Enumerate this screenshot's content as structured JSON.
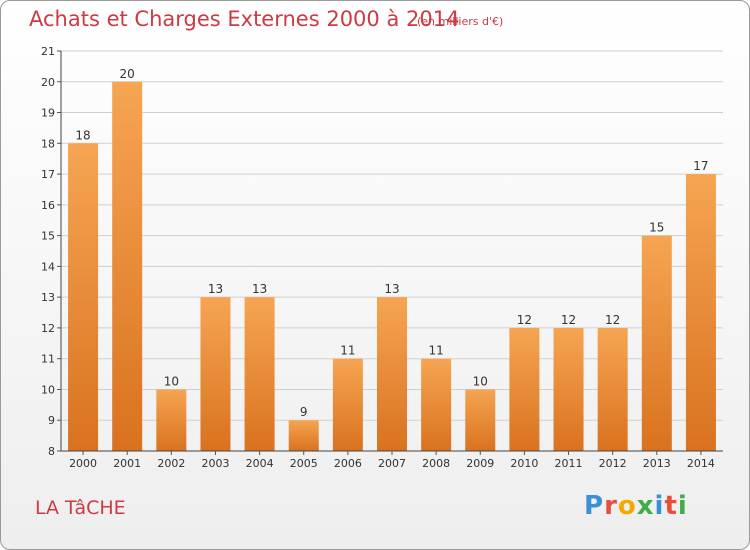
{
  "header": {
    "title": "Achats et Charges Externes 2000 à 2014",
    "subtitle": "(en milliers d'€)"
  },
  "footer": {
    "town": "LA TâCHE",
    "brand": "Proxiti",
    "brand_letters": [
      "P",
      "r",
      "o",
      "x",
      "i",
      "t",
      "i"
    ],
    "brand_colors": [
      "#3b8fd6",
      "#e94e3c",
      "#f2a900",
      "#3fae49",
      "#3b8fd6",
      "#e94e3c",
      "#3fae49"
    ]
  },
  "colors": {
    "bar_top": "#f6a552",
    "bar_bottom": "#d9721f",
    "title": "#cc3b45",
    "grid": "#cfcfcf"
  },
  "chart_data": {
    "type": "bar",
    "categories": [
      "2000",
      "2001",
      "2002",
      "2003",
      "2004",
      "2005",
      "2006",
      "2007",
      "2008",
      "2009",
      "2010",
      "2011",
      "2012",
      "2013",
      "2014"
    ],
    "values": [
      18,
      20,
      10,
      13,
      13,
      9,
      11,
      13,
      11,
      10,
      12,
      12,
      12,
      15,
      17
    ],
    "ylim": [
      8,
      21
    ],
    "yticks": [
      8,
      9,
      10,
      11,
      12,
      13,
      14,
      15,
      16,
      17,
      18,
      19,
      20,
      21
    ],
    "title": "Achats et Charges Externes 2000 à 2014",
    "xlabel": "",
    "ylabel": "",
    "grid": true
  }
}
